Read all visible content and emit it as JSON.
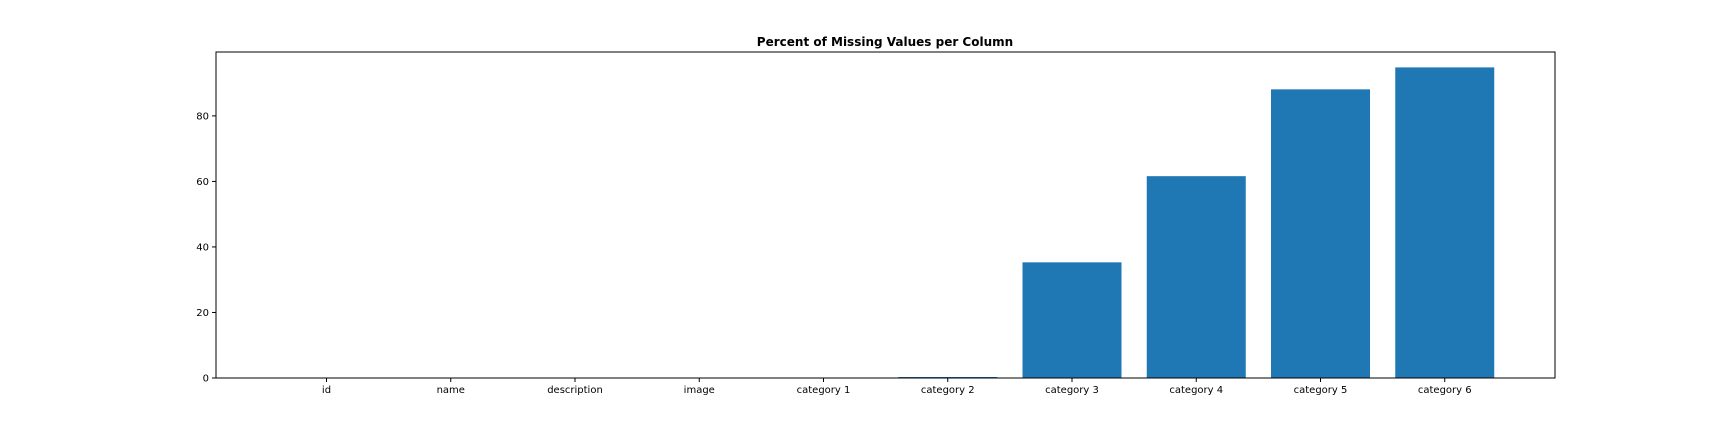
{
  "chart_data": {
    "type": "bar",
    "title": "Percent of Missing Values per Column",
    "xlabel": "",
    "ylabel": "",
    "categories": [
      "id",
      "name",
      "description",
      "image",
      "category 1",
      "category 2",
      "category 3",
      "category 4",
      "category 5",
      "category 6"
    ],
    "values": [
      0,
      0,
      0,
      0,
      0,
      0.3,
      35.3,
      61.6,
      88.1,
      94.8
    ],
    "ylim": [
      0,
      99.5
    ],
    "yticks": [
      0,
      20,
      40,
      60,
      80
    ],
    "grid": false,
    "legend": "none",
    "bar_color": "#1f77b4"
  }
}
